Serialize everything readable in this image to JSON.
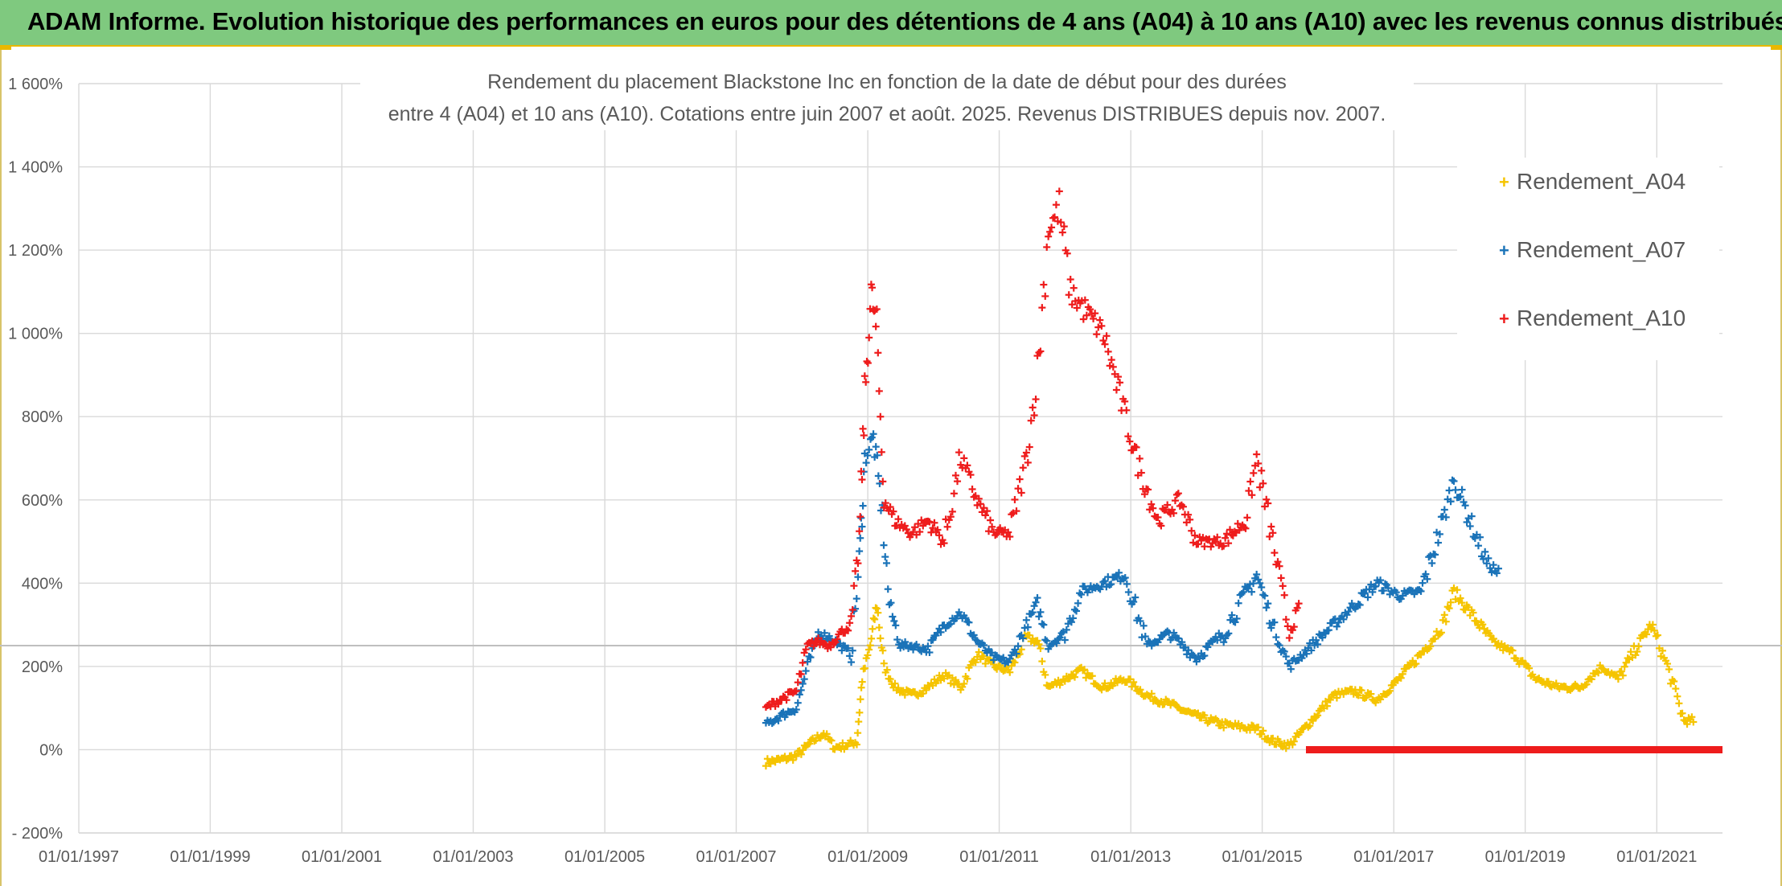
{
  "banner": {
    "title": "ADAM Informe. Evolution historique des performances en euros pour des détentions de 4 ans (A04) à 10 ans (A10) avec les revenus connus distribués"
  },
  "colors": {
    "banner_bg": "#7fc97f",
    "banner_accent": "#e9b800",
    "A04": "#f5c400",
    "A07": "#1a73b8",
    "A10": "#ee1c1c",
    "grid": "#d9d9d9",
    "reference_line": "#bfbfbf",
    "text": "#595959"
  },
  "chart_data": {
    "type": "scatter",
    "marker": "plus",
    "title_line1": "Rendement du placement Blackstone Inc en fonction de la date de début pour des durées",
    "title_line2": "entre 4 (A04) et 10 ans (A10). Cotations entre juin 2007 et août. 2025. Revenus DISTRIBUES depuis nov. 2007.",
    "xlabel": "",
    "ylabel": "",
    "x_range": [
      "1997-01-01",
      "2022-01-01"
    ],
    "y_range": [
      -200,
      1600
    ],
    "y_ticks": [
      -200,
      0,
      200,
      400,
      600,
      800,
      1000,
      1200,
      1400,
      1600
    ],
    "y_tick_labels": [
      "- 200%",
      "0%",
      "200%",
      "400%",
      "600%",
      "800%",
      "1 000%",
      "1 200%",
      "1 400%",
      "1 600%"
    ],
    "x_ticks": [
      "1997-01-01",
      "1999-01-01",
      "2001-01-01",
      "2003-01-01",
      "2005-01-01",
      "2007-01-01",
      "2009-01-01",
      "2011-01-01",
      "2013-01-01",
      "2015-01-01",
      "2017-01-01",
      "2019-01-01",
      "2021-01-01"
    ],
    "x_tick_labels": [
      "01/01/1997",
      "01/01/1999",
      "01/01/2001",
      "01/01/2003",
      "01/01/2005",
      "01/01/2007",
      "01/01/2009",
      "01/01/2011",
      "01/01/2013",
      "01/01/2015",
      "01/01/2017",
      "01/01/2019",
      "01/01/2021"
    ],
    "reference_line_y": 250,
    "grid": true,
    "legend_position": "right",
    "series": [
      {
        "name": "Rendement_A04",
        "color": "#f5c400",
        "points": [
          [
            "2007-06-15",
            -30
          ],
          [
            "2007-09-01",
            -25
          ],
          [
            "2007-12-01",
            -15
          ],
          [
            "2008-03-01",
            20
          ],
          [
            "2008-05-01",
            40
          ],
          [
            "2008-07-01",
            5
          ],
          [
            "2008-09-01",
            10
          ],
          [
            "2008-11-01",
            20
          ],
          [
            "2008-12-01",
            170
          ],
          [
            "2009-01-15",
            250
          ],
          [
            "2009-02-20",
            350
          ],
          [
            "2009-04-01",
            200
          ],
          [
            "2009-06-01",
            150
          ],
          [
            "2009-09-01",
            130
          ],
          [
            "2009-12-01",
            150
          ],
          [
            "2010-03-01",
            180
          ],
          [
            "2010-06-01",
            150
          ],
          [
            "2010-09-01",
            230
          ],
          [
            "2010-12-01",
            200
          ],
          [
            "2011-03-01",
            190
          ],
          [
            "2011-06-01",
            270
          ],
          [
            "2011-08-01",
            260
          ],
          [
            "2011-10-01",
            150
          ],
          [
            "2012-01-01",
            170
          ],
          [
            "2012-04-01",
            190
          ],
          [
            "2012-08-01",
            150
          ],
          [
            "2012-12-01",
            170
          ],
          [
            "2013-04-01",
            130
          ],
          [
            "2013-08-01",
            110
          ],
          [
            "2014-01-01",
            80
          ],
          [
            "2014-06-01",
            60
          ],
          [
            "2014-12-01",
            50
          ],
          [
            "2015-03-01",
            20
          ],
          [
            "2015-06-01",
            10
          ],
          [
            "2015-10-01",
            70
          ],
          [
            "2016-02-01",
            130
          ],
          [
            "2016-06-01",
            140
          ],
          [
            "2016-10-01",
            120
          ],
          [
            "2017-02-01",
            170
          ],
          [
            "2017-06-01",
            230
          ],
          [
            "2017-10-01",
            300
          ],
          [
            "2017-12-01",
            380
          ],
          [
            "2018-03-01",
            330
          ],
          [
            "2018-07-01",
            260
          ],
          [
            "2018-11-01",
            230
          ],
          [
            "2019-03-01",
            170
          ],
          [
            "2019-07-01",
            150
          ],
          [
            "2019-11-01",
            150
          ],
          [
            "2020-03-01",
            200
          ],
          [
            "2020-06-01",
            170
          ],
          [
            "2020-10-01",
            260
          ],
          [
            "2020-12-01",
            300
          ],
          [
            "2021-03-01",
            200
          ],
          [
            "2021-06-01",
            70
          ],
          [
            "2021-08-01",
            70
          ]
        ]
      },
      {
        "name": "Rendement_A07",
        "color": "#1a73b8",
        "points": [
          [
            "2007-06-15",
            60
          ],
          [
            "2007-09-01",
            80
          ],
          [
            "2007-12-01",
            100
          ],
          [
            "2008-02-01",
            200
          ],
          [
            "2008-04-01",
            280
          ],
          [
            "2008-06-01",
            270
          ],
          [
            "2008-08-01",
            250
          ],
          [
            "2008-10-01",
            230
          ],
          [
            "2008-11-15",
            450
          ],
          [
            "2008-12-15",
            700
          ],
          [
            "2009-02-01",
            750
          ],
          [
            "2009-03-15",
            600
          ],
          [
            "2009-05-01",
            350
          ],
          [
            "2009-07-01",
            250
          ],
          [
            "2009-09-01",
            250
          ],
          [
            "2009-12-01",
            240
          ],
          [
            "2010-03-01",
            300
          ],
          [
            "2010-06-01",
            330
          ],
          [
            "2010-09-01",
            260
          ],
          [
            "2010-12-01",
            220
          ],
          [
            "2011-03-01",
            210
          ],
          [
            "2011-06-01",
            300
          ],
          [
            "2011-08-01",
            350
          ],
          [
            "2011-10-01",
            250
          ],
          [
            "2012-01-01",
            280
          ],
          [
            "2012-04-01",
            380
          ],
          [
            "2012-08-01",
            400
          ],
          [
            "2012-12-01",
            420
          ],
          [
            "2013-04-01",
            250
          ],
          [
            "2013-08-01",
            280
          ],
          [
            "2014-01-01",
            220
          ],
          [
            "2014-06-01",
            280
          ],
          [
            "2014-12-01",
            420
          ],
          [
            "2015-03-01",
            300
          ],
          [
            "2015-06-01",
            200
          ],
          [
            "2015-10-01",
            250
          ],
          [
            "2016-02-01",
            300
          ],
          [
            "2016-06-01",
            350
          ],
          [
            "2016-10-01",
            400
          ],
          [
            "2017-02-01",
            370
          ],
          [
            "2017-06-01",
            380
          ],
          [
            "2017-10-01",
            550
          ],
          [
            "2017-12-01",
            650
          ],
          [
            "2018-03-01",
            550
          ],
          [
            "2018-06-01",
            450
          ],
          [
            "2018-08-15",
            420
          ]
        ]
      },
      {
        "name": "Rendement_A10",
        "color": "#ee1c1c",
        "points": [
          [
            "2007-06-15",
            100
          ],
          [
            "2007-09-01",
            120
          ],
          [
            "2007-12-01",
            140
          ],
          [
            "2008-02-01",
            250
          ],
          [
            "2008-04-01",
            260
          ],
          [
            "2008-06-01",
            250
          ],
          [
            "2008-08-01",
            280
          ],
          [
            "2008-10-01",
            300
          ],
          [
            "2008-11-15",
            500
          ],
          [
            "2008-12-15",
            850
          ],
          [
            "2009-01-20",
            1100
          ],
          [
            "2009-02-20",
            1000
          ],
          [
            "2009-04-01",
            600
          ],
          [
            "2009-06-01",
            550
          ],
          [
            "2009-09-01",
            520
          ],
          [
            "2009-12-01",
            550
          ],
          [
            "2010-03-01",
            500
          ],
          [
            "2010-06-01",
            700
          ],
          [
            "2010-09-01",
            600
          ],
          [
            "2010-12-01",
            520
          ],
          [
            "2011-03-01",
            520
          ],
          [
            "2011-06-01",
            700
          ],
          [
            "2011-08-01",
            900
          ],
          [
            "2011-10-01",
            1250
          ],
          [
            "2011-12-01",
            1300
          ],
          [
            "2012-02-01",
            1100
          ],
          [
            "2012-05-01",
            1050
          ],
          [
            "2012-08-01",
            1000
          ],
          [
            "2012-11-01",
            850
          ],
          [
            "2013-02-01",
            700
          ],
          [
            "2013-06-01",
            550
          ],
          [
            "2013-10-01",
            600
          ],
          [
            "2014-01-01",
            500
          ],
          [
            "2014-06-01",
            500
          ],
          [
            "2014-10-01",
            550
          ],
          [
            "2014-12-01",
            700
          ],
          [
            "2015-03-01",
            500
          ],
          [
            "2015-06-01",
            280
          ],
          [
            "2015-08-01",
            350
          ]
        ],
        "zero_segment": [
          "2015-09-01",
          "2022-01-01"
        ]
      }
    ]
  }
}
